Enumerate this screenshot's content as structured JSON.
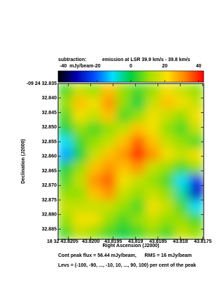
{
  "chart_data": {
    "type": "heatmap",
    "subtitle_left": "subtraction:",
    "subtitle_right": "emission at LSR 39.9 km/s - 39.8 km/s",
    "colorbar_label": "mJy/beam",
    "clim": [
      -43,
      43
    ],
    "cticks": [
      -40,
      -20,
      0,
      20,
      40
    ],
    "colormap": [
      "#000000",
      "#0000b0",
      "#0050ff",
      "#00e0ff",
      "#00d040",
      "#a0e000",
      "#ffe000",
      "#ff8000",
      "#ff0000"
    ],
    "xlabel": "Right Ascension (J2000)",
    "ylabel": "Declination (J2000)",
    "xlim": [
      43.82073,
      43.81748
    ],
    "ylim": [
      32.835,
      32.8885
    ],
    "xticks": [
      {
        "value": 43.8205,
        "label": "18 32 43.8205"
      },
      {
        "value": 43.82,
        "label": "43.8200"
      },
      43.8195,
      43.819,
      43.8185,
      43.818,
      43.8175
    ],
    "yticks": [
      {
        "value": 32.835,
        "label": "-09 24 32.835"
      },
      {
        "value": 32.84,
        "label": "32.840"
      },
      32.845,
      {
        "value": 32.85,
        "label": "32.850"
      },
      32.855,
      {
        "value": 32.86,
        "label": "32.860"
      },
      32.865,
      {
        "value": 32.87,
        "label": "32.870"
      },
      32.875,
      {
        "value": 32.88,
        "label": "32.880"
      },
      32.885
    ],
    "values": [
      [
        5,
        15,
        10,
        25,
        10,
        5,
        10,
        20,
        15,
        10
      ],
      [
        10,
        25,
        20,
        30,
        10,
        0,
        15,
        25,
        20,
        15
      ],
      [
        5,
        20,
        15,
        25,
        5,
        10,
        20,
        15,
        10,
        20
      ],
      [
        0,
        10,
        5,
        10,
        15,
        25,
        20,
        10,
        5,
        15
      ],
      [
        -10,
        5,
        10,
        15,
        25,
        35,
        25,
        15,
        10,
        5
      ],
      [
        -15,
        0,
        15,
        25,
        30,
        40,
        30,
        20,
        15,
        20
      ],
      [
        0,
        10,
        25,
        30,
        25,
        30,
        15,
        10,
        5,
        10
      ],
      [
        5,
        15,
        30,
        35,
        20,
        15,
        10,
        5,
        -10,
        -25
      ],
      [
        10,
        10,
        25,
        30,
        15,
        10,
        15,
        10,
        -5,
        -30
      ],
      [
        15,
        15,
        15,
        15,
        10,
        5,
        20,
        15,
        5,
        -10
      ],
      [
        10,
        20,
        20,
        10,
        5,
        10,
        15,
        10,
        10,
        5
      ],
      [
        5,
        15,
        10,
        5,
        0,
        5,
        10,
        5,
        15,
        10
      ]
    ],
    "footer_1": "Cont peak flux = 56.44 mJy/beam,      RMS = 16 mJy/beam",
    "footer_2": "Levs = (-100, -90, ..., -10, 10, ..., 90, 100) per cent of the peak"
  }
}
